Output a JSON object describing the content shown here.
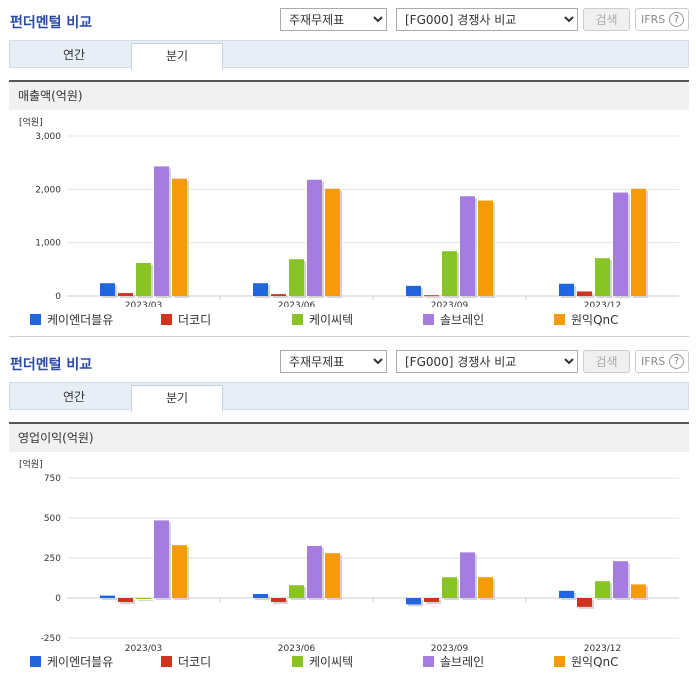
{
  "controls": {
    "title": "펀더멘털 비교",
    "statement_select": "주재무제표",
    "peer_select": "[FG000] 경쟁사 비교",
    "search_label": "검색",
    "ifrs_label": "IFRS",
    "help_icon": "?",
    "tab_annual": "연간",
    "tab_quarter": "분기",
    "active_tab": "분기",
    "icons": {
      "help": "question-circle-icon",
      "dropdown": "chevron-down-icon"
    }
  },
  "legend": [
    {
      "name": "케이엔더블유",
      "color": "#2266dd"
    },
    {
      "name": "더코디",
      "color": "#d0331f"
    },
    {
      "name": "케이씨텍",
      "color": "#88c425"
    },
    {
      "name": "솔브레인",
      "color": "#a57ce0"
    },
    {
      "name": "원익QnC",
      "color": "#f59a0b"
    }
  ],
  "chart_data": [
    {
      "type": "bar",
      "title": "매출액(억원)",
      "unit": "[억원]",
      "categories": [
        "2023/03",
        "2023/06",
        "2023/09",
        "2023/12"
      ],
      "ylim": [
        0,
        3000
      ],
      "yticks": [
        0,
        1000,
        2000,
        3000
      ],
      "ytick_labels": [
        "0",
        "1,000",
        "2,000",
        "3,000"
      ],
      "grid": true,
      "series": [
        {
          "name": "케이엔더블유",
          "values": [
            240,
            240,
            190,
            230
          ]
        },
        {
          "name": "더코디",
          "values": [
            55,
            35,
            15,
            85
          ]
        },
        {
          "name": "케이씨텍",
          "values": [
            620,
            690,
            840,
            710
          ]
        },
        {
          "name": "솔브레인",
          "values": [
            2430,
            2180,
            1870,
            1940
          ]
        },
        {
          "name": "원익QnC",
          "values": [
            2200,
            2010,
            1790,
            2010
          ]
        }
      ]
    },
    {
      "type": "bar",
      "title": "영업이익(억원)",
      "unit": "[억원]",
      "categories": [
        "2023/03",
        "2023/06",
        "2023/09",
        "2023/12"
      ],
      "ylim": [
        -250,
        750
      ],
      "yticks": [
        -250,
        0,
        250,
        500,
        750
      ],
      "ytick_labels": [
        "-250",
        "0",
        "250",
        "500",
        "750"
      ],
      "grid": true,
      "series": [
        {
          "name": "케이엔더블유",
          "values": [
            15,
            25,
            -40,
            45
          ]
        },
        {
          "name": "더코디",
          "values": [
            -25,
            -25,
            -25,
            -55
          ]
        },
        {
          "name": "케이씨텍",
          "values": [
            -5,
            80,
            130,
            105
          ]
        },
        {
          "name": "솔브레인",
          "values": [
            485,
            325,
            285,
            230
          ]
        },
        {
          "name": "원익QnC",
          "values": [
            330,
            280,
            130,
            85
          ]
        }
      ]
    }
  ]
}
